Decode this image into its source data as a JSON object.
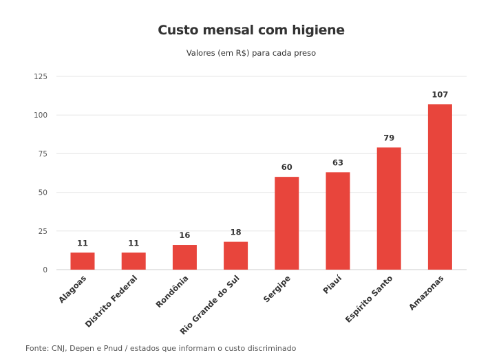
{
  "title": "Custo mensal com higiene",
  "subtitle": "Valores (em R$) para cada preso",
  "source": "Fonte: CNJ, Depen e Pnud / estados que informam o custo discriminado",
  "colors": {
    "bar": "#e8453c",
    "grid": "#e6e6e6",
    "axis": "#cccccc",
    "text": "#333333"
  },
  "chart_data": {
    "type": "bar",
    "categories": [
      "Alagoas",
      "Distrito Federal",
      "Rondônia",
      "Rio Grande do Sul",
      "Sergipe",
      "Piauí",
      "Espírito Santo",
      "Amazonas"
    ],
    "values": [
      11,
      11,
      16,
      18,
      60,
      63,
      79,
      107
    ],
    "ylim": [
      0,
      125
    ],
    "yticks": [
      0,
      25,
      50,
      75,
      100,
      125
    ],
    "grid": true,
    "data_labels": true
  }
}
